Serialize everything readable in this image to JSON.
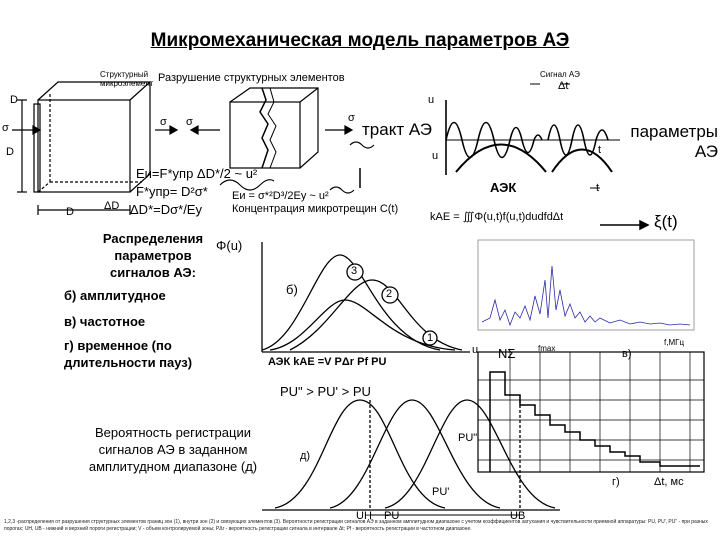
{
  "title": "Микромеханическая модель параметров АЭ",
  "labels": {
    "structural_element": "Структурный микроэлемент",
    "destruction": "Разрушение структурных элементов",
    "signal_ae": "Сигнал АЭ",
    "delta_t": "Δt",
    "D_top": "D",
    "D_left": "D",
    "D_bottom": "D",
    "delta_D": "ΔD",
    "sigma_left": "σ",
    "sigma_right_cube": "σ",
    "sigma_left_block": "σ",
    "sigma_right_block": "σ",
    "u_top": "u",
    "u_bottom": "u",
    "t_mid": "t",
    "t_right": "t",
    "ae_path": "тракт АЭ",
    "ae_params": "параметры АЭ",
    "aek": "АЭК",
    "formula_energy": "Еи=F*упр ΔD*/2 ~ u²",
    "formula_force": "F*упр= D²σ*",
    "formula_delta": "ΔD*=Dσ*/Еу",
    "formula_eu": "Еи = σ*²D³/2Еу ~ u²",
    "crack_concentration": "Концентрация микротрещин С(t)",
    "kae_formula": "kAE = ∭Φ(u,t)f(u,t)dudfdΔt",
    "xi": "ξ(t)",
    "dist_title": "Распределения параметров сигналов АЭ:",
    "phi_u": "Φ(u)",
    "b_amp": "б) амплитудное",
    "v_freq": "в) частотное",
    "g_time": "г) временное (по длительности пауз)",
    "b_label": "б)",
    "circle1": "1",
    "circle2": "2",
    "circle3": "3",
    "u_axis": "u",
    "aek_k": "АЭК kAE =V PΔr Pf PU",
    "n_sigma": "NΣ",
    "fmax": "fmax",
    "v_label": "в)",
    "fmhz": "f,МГц",
    "pu_ineq": "PU\" > PU' > PU",
    "prob_title": "Вероятность регистрации сигналов АЭ в заданном амплитудном диапазоне (д)",
    "d_label": "д)",
    "pu2": "PU\"",
    "pu1": "PU'",
    "pu0": "PU",
    "u_low": "UН",
    "u_high": "UВ",
    "g_label": "г)",
    "dt_ms": "Δt, мс",
    "footnote": "1,2,3 -распределения от разрушения структурных элементов границ зон (1), внутри зон (2) и связующих элементов (3). Вероятности регистрации сигналов АЭ в заданном амплитудном диапазоне с учетом коэффициентов затухания и чувствительности приемной аппаратуры: PU, PU', PU\" - при разных порогах; UН, UВ - нижний и верхний пороги регистрации; V - объем контролируемой зоны; PΔr - вероятность регистрации сигнала в интервале Δt; Pf - вероятность регистрации в частотном диапазоне."
  },
  "icons": [
    "cube-icon",
    "broken-block-icon",
    "circle-marker-icon"
  ]
}
